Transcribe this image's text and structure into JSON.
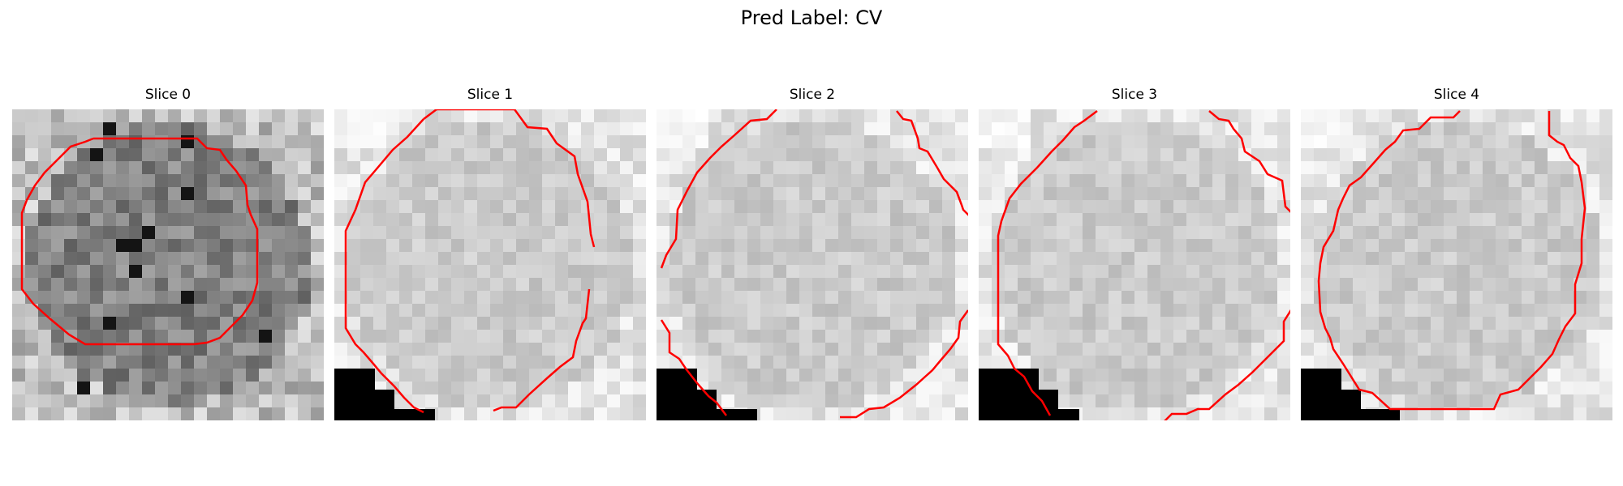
{
  "figure": {
    "title": "Pred Label: CV"
  },
  "panels": [
    {
      "title": "Slice 0",
      "kind": "dark"
    },
    {
      "title": "Slice 1",
      "kind": "light"
    },
    {
      "title": "Slice 2",
      "kind": "light"
    },
    {
      "title": "Slice 3",
      "kind": "light"
    },
    {
      "title": "Slice 4",
      "kind": "light"
    }
  ],
  "colors": {
    "contour": "#ff0000",
    "background": "#ffffff"
  }
}
